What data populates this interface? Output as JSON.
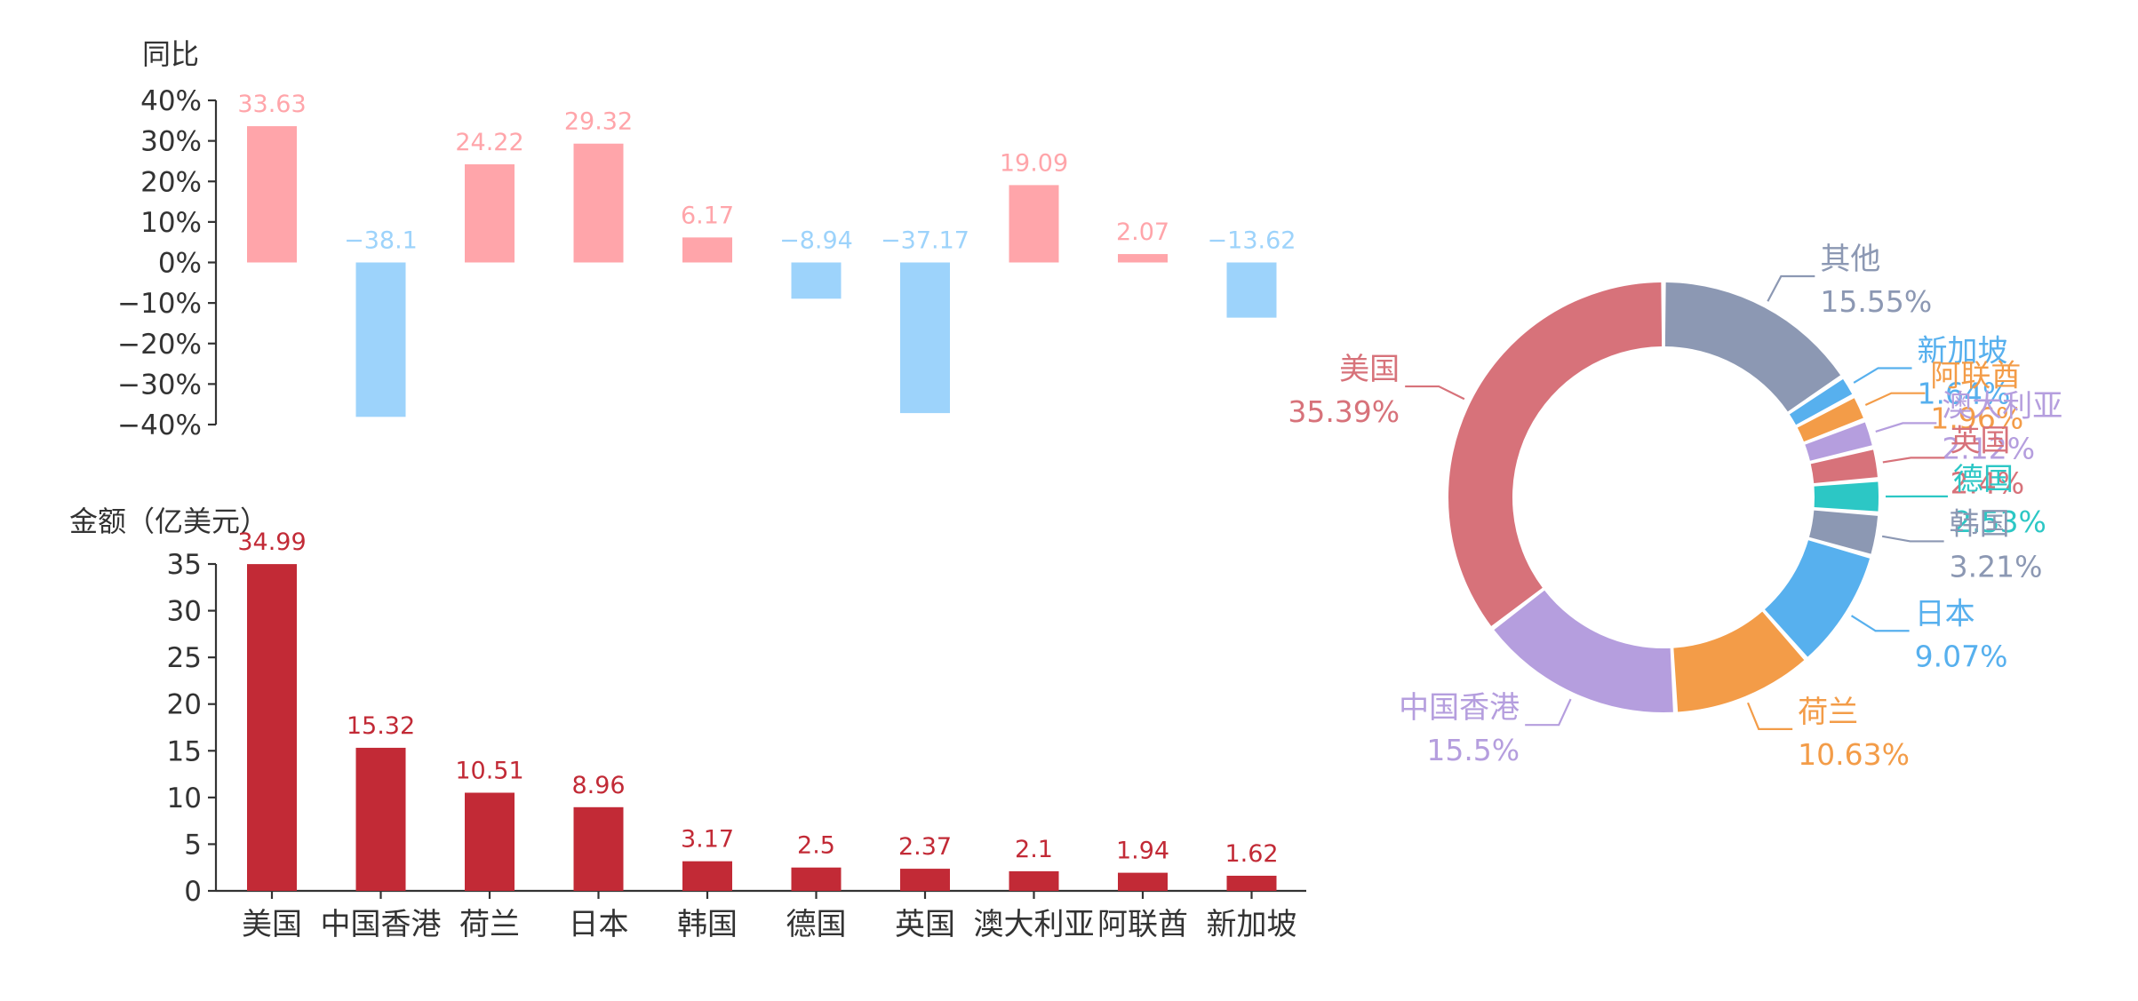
{
  "colors": {
    "positive": "#FFA5AA",
    "negative": "#9DD3FB",
    "amount_bar": "#C22A36",
    "axis": "#333333"
  },
  "chart_data": [
    {
      "type": "bar",
      "ylabel": "同比",
      "categories": [
        "美国",
        "中国香港",
        "荷兰",
        "日本",
        "韩国",
        "德国",
        "英国",
        "澳大利亚",
        "阿联酋",
        "新加坡"
      ],
      "values": [
        33.63,
        -38.1,
        24.22,
        29.32,
        6.17,
        -8.94,
        -37.17,
        19.09,
        2.07,
        -13.62
      ],
      "value_labels": [
        "33.63",
        "−38.1",
        "24.22",
        "29.32",
        "6.17",
        "−8.94",
        "−37.17",
        "19.09",
        "2.07",
        "−13.62"
      ],
      "ylim": [
        -40,
        40
      ],
      "yticks": [
        40,
        30,
        20,
        10,
        0,
        -10,
        -20,
        -30,
        -40
      ],
      "ytick_labels": [
        "40%",
        "30%",
        "20%",
        "10%",
        "0%",
        "−10%",
        "−20%",
        "−30%",
        "−40%"
      ],
      "grid": false
    },
    {
      "type": "bar",
      "ylabel": "金额（亿美元）",
      "categories": [
        "美国",
        "中国香港",
        "荷兰",
        "日本",
        "韩国",
        "德国",
        "英国",
        "澳大利亚",
        "阿联酋",
        "新加坡"
      ],
      "values": [
        34.99,
        15.32,
        10.51,
        8.96,
        3.17,
        2.5,
        2.37,
        2.1,
        1.94,
        1.62
      ],
      "value_labels": [
        "34.99",
        "15.32",
        "10.51",
        "8.96",
        "3.17",
        "2.5",
        "2.37",
        "2.1",
        "1.94",
        "1.62"
      ],
      "ylim": [
        0,
        35
      ],
      "yticks": [
        35,
        30,
        25,
        20,
        15,
        10,
        5,
        0
      ],
      "ytick_labels": [
        "35",
        "30",
        "25",
        "20",
        "15",
        "10",
        "5",
        "0"
      ],
      "grid": false
    },
    {
      "type": "pie",
      "donut": true,
      "slices": [
        {
          "name": "其他",
          "value": 15.55,
          "label": "15.55%",
          "color": "#8C98B3"
        },
        {
          "name": "新加坡",
          "value": 1.64,
          "label": "1.64%",
          "color": "#57B0EE"
        },
        {
          "name": "阿联酋",
          "value": 1.96,
          "label": "1.96%",
          "color": "#F39C48"
        },
        {
          "name": "澳大利亚",
          "value": 2.12,
          "label": "2.12%",
          "color": "#B59EDE"
        },
        {
          "name": "英国",
          "value": 2.4,
          "label": "2.4%",
          "color": "#D7727A"
        },
        {
          "name": "德国",
          "value": 2.53,
          "label": "2.53%",
          "color": "#2CC7C5"
        },
        {
          "name": "韩国",
          "value": 3.21,
          "label": "3.21%",
          "color": "#8C98B3"
        },
        {
          "name": "日本",
          "value": 9.07,
          "label": "9.07%",
          "color": "#57B0EE"
        },
        {
          "name": "荷兰",
          "value": 10.63,
          "label": "10.63%",
          "color": "#F39C48"
        },
        {
          "name": "中国香港",
          "value": 15.5,
          "label": "15.5%",
          "color": "#B59EDE"
        },
        {
          "name": "美国",
          "value": 35.39,
          "label": "35.39%",
          "color": "#D7727A"
        }
      ]
    }
  ]
}
